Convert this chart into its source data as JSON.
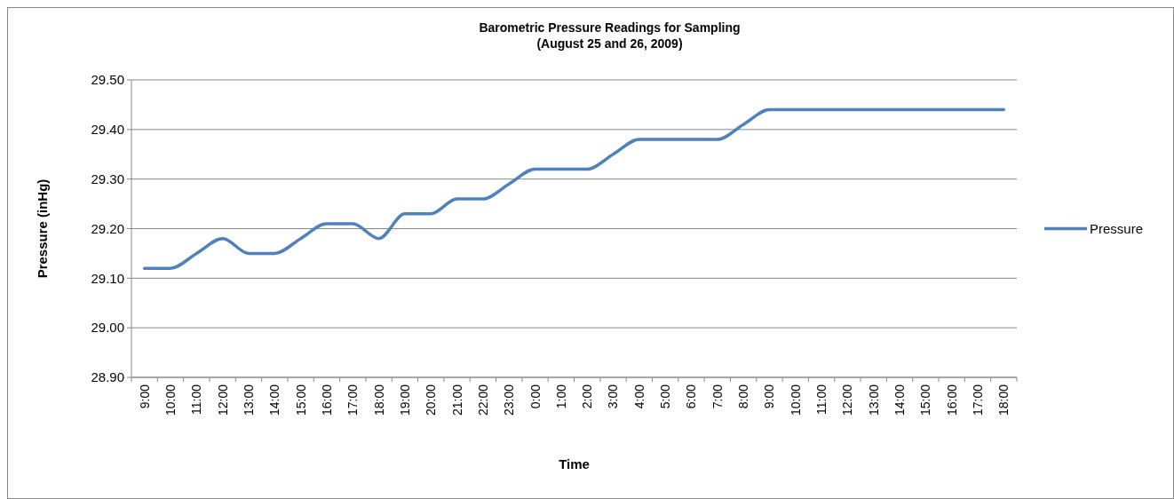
{
  "chart_data": {
    "type": "line",
    "title": "Barometric Pressure Readings for Sampling",
    "subtitle": "(August 25 and 26, 2009)",
    "xlabel": "Time",
    "ylabel": "Pressure (inHg)",
    "categories": [
      "9:00",
      "10:00",
      "11:00",
      "12:00",
      "13:00",
      "14:00",
      "15:00",
      "16:00",
      "17:00",
      "18:00",
      "19:00",
      "20:00",
      "21:00",
      "22:00",
      "23:00",
      "0:00",
      "1:00",
      "2:00",
      "3:00",
      "4:00",
      "5:00",
      "6:00",
      "7:00",
      "8:00",
      "9:00",
      "10:00",
      "11:00",
      "12:00",
      "13:00",
      "14:00",
      "15:00",
      "16:00",
      "17:00",
      "18:00"
    ],
    "series": [
      {
        "name": "Pressure",
        "color": "#4f81bd",
        "values": [
          29.12,
          29.12,
          29.15,
          29.18,
          29.15,
          29.15,
          29.18,
          29.21,
          29.21,
          29.18,
          29.23,
          29.23,
          29.26,
          29.26,
          29.29,
          29.32,
          29.32,
          29.32,
          29.35,
          29.38,
          29.38,
          29.38,
          29.38,
          29.41,
          29.44,
          29.44,
          29.44,
          29.44,
          29.44,
          29.44,
          29.44,
          29.44,
          29.44,
          29.44
        ]
      }
    ],
    "ylim": [
      28.9,
      29.5
    ],
    "yticks": [
      {
        "value": 28.9,
        "label": "28.90"
      },
      {
        "value": 29.0,
        "label": "29.00"
      },
      {
        "value": 29.1,
        "label": "29.10"
      },
      {
        "value": 29.2,
        "label": "29.20"
      },
      {
        "value": 29.3,
        "label": "29.30"
      },
      {
        "value": 29.4,
        "label": "29.40"
      },
      {
        "value": 29.5,
        "label": "29.50"
      }
    ],
    "grid": "y",
    "legend": "right",
    "marker": "none",
    "line_style": "solid"
  }
}
